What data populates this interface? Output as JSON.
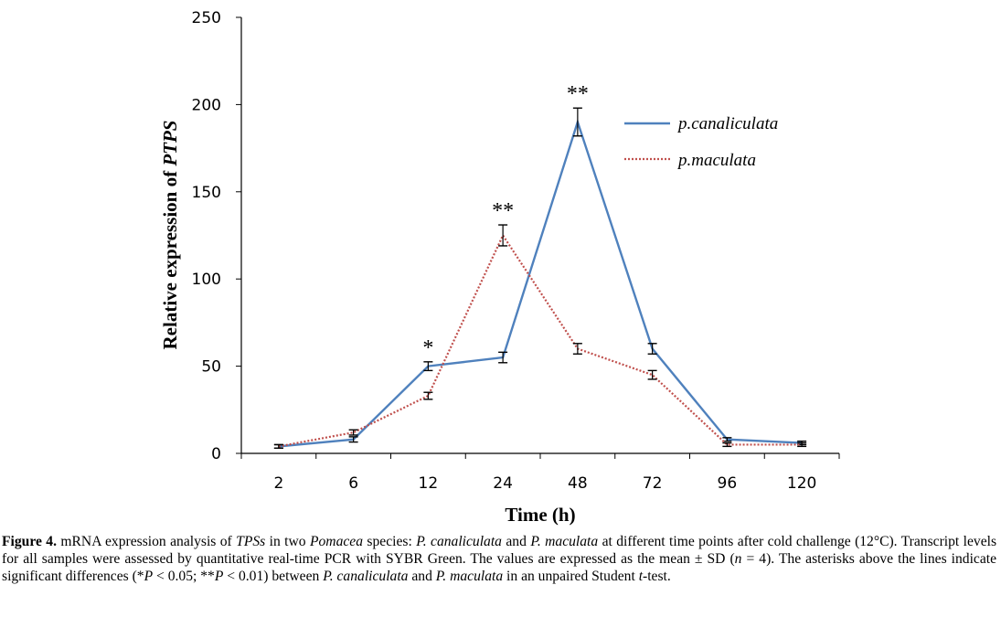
{
  "chart_data": {
    "type": "line",
    "categories": [
      "2",
      "6",
      "12",
      "24",
      "48",
      "72",
      "96",
      "120"
    ],
    "series": [
      {
        "name": "p.canaliculata",
        "values": [
          4,
          8,
          50,
          55,
          190,
          60,
          8,
          6
        ],
        "errors": [
          1,
          1.5,
          2.5,
          3,
          8,
          3,
          1,
          1
        ],
        "color": "#4f81bd",
        "style": "solid"
      },
      {
        "name": "p.maculata",
        "values": [
          4,
          12,
          33,
          125,
          60,
          45,
          5,
          5
        ],
        "errors": [
          1,
          1.5,
          2,
          6,
          3,
          2.5,
          1,
          1
        ],
        "color": "#c0504d",
        "style": "dotted"
      }
    ],
    "annotations": [
      {
        "category": "12",
        "text": "*"
      },
      {
        "category": "24",
        "text": "**"
      },
      {
        "category": "48",
        "text": "**"
      }
    ],
    "xlabel": "Time (h)",
    "ylabel": {
      "prefix": "Relative expression of ",
      "italic": "PTPS"
    },
    "ylim": [
      0,
      250
    ],
    "yticks": [
      0,
      50,
      100,
      150,
      200,
      250
    ],
    "grid": false,
    "legend_position": "top-right"
  },
  "caption": {
    "figure_label": "Figure 4.",
    "t1": " mRNA expression analysis of ",
    "i1": "TPSs",
    "t2": " in two ",
    "i2": "Pomacea",
    "t3": " species: ",
    "i3": "P. canaliculata",
    "t4": " and ",
    "i4": "P. maculata",
    "t5": " at different time points after cold challenge (12°C). Transcript levels for all samples were assessed by quantitative real-time PCR with SYBR Green. The values are expressed as the mean ± SD (",
    "i5": "n",
    "t6": " = 4). The asterisks above the lines indicate significant differences (*",
    "i6": "P",
    "t7": " < 0.05; **",
    "i7": "P",
    "t8": " < 0.01) between ",
    "i8": "P. canaliculata",
    "t9": " and ",
    "i9": "P. maculata",
    "t10": " in an unpaired Student ",
    "i10": "t",
    "t11": "-test."
  }
}
